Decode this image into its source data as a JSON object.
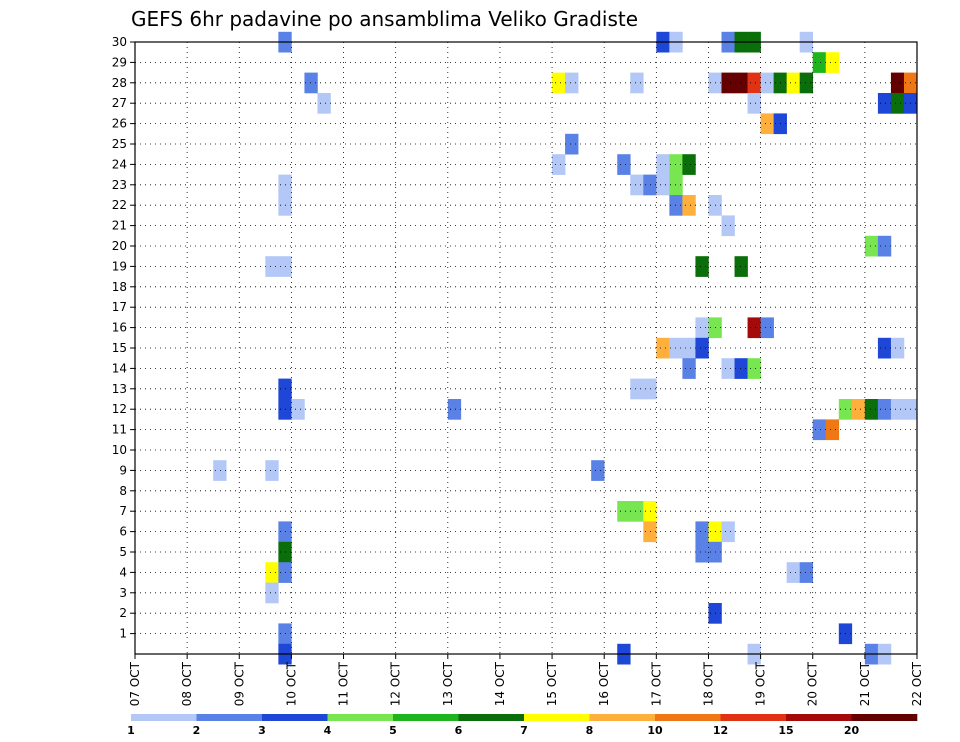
{
  "chart_data": {
    "type": "heatmap",
    "title": "GEFS 6hr padavine po ansamblima Veliko Gradiste",
    "xlabel": "",
    "ylabel": "",
    "x_ticks": [
      "07 OCT",
      "08 OCT",
      "09 OCT",
      "10 OCT",
      "11 OCT",
      "12 OCT",
      "13 OCT",
      "14 OCT",
      "15 OCT",
      "16 OCT",
      "17 OCT",
      "18 OCT",
      "19 OCT",
      "20 OCT",
      "21 OCT",
      "22 OCT"
    ],
    "y_ticks": [
      1,
      2,
      3,
      4,
      5,
      6,
      7,
      8,
      9,
      10,
      11,
      12,
      13,
      14,
      15,
      16,
      17,
      18,
      19,
      20,
      21,
      22,
      23,
      24,
      25,
      26,
      27,
      28,
      29,
      30
    ],
    "x_range_days": [
      0,
      15
    ],
    "y_range_members": [
      0,
      30
    ],
    "time_step_hours": 6,
    "grid": true,
    "colorbar": {
      "position": "bottom",
      "tick_labels": [
        "1",
        "2",
        "3",
        "4",
        "5",
        "6",
        "7",
        "8",
        "10",
        "12",
        "15",
        "20"
      ],
      "colors": [
        "#b4c8f8",
        "#5a82e6",
        "#1e46d7",
        "#78e650",
        "#1eb41e",
        "#0a6e0a",
        "#ffff00",
        "#ffaf3c",
        "#f07814",
        "#e13214",
        "#a50a0a",
        "#640000"
      ]
    },
    "palette_names": [
      "light-blue",
      "blue",
      "dark-blue",
      "light-green",
      "green",
      "dark-green",
      "yellow",
      "light-orange",
      "orange",
      "red",
      "dark-red",
      "maroon"
    ],
    "cells": [
      {
        "member": 30,
        "day": 2.75,
        "level": 1
      },
      {
        "member": 30,
        "day": 10.0,
        "level": 2
      },
      {
        "member": 30,
        "day": 10.25,
        "level": 0
      },
      {
        "member": 30,
        "day": 11.25,
        "level": 1
      },
      {
        "member": 30,
        "day": 11.5,
        "level": 5
      },
      {
        "member": 30,
        "day": 11.75,
        "level": 5
      },
      {
        "member": 30,
        "day": 12.75,
        "level": 0
      },
      {
        "member": 29,
        "day": 13.0,
        "level": 4
      },
      {
        "member": 29,
        "day": 13.25,
        "level": 6
      },
      {
        "member": 28,
        "day": 3.25,
        "level": 1
      },
      {
        "member": 28,
        "day": 8.0,
        "level": 6
      },
      {
        "member": 28,
        "day": 8.25,
        "level": 0
      },
      {
        "member": 28,
        "day": 9.5,
        "level": 0
      },
      {
        "member": 28,
        "day": 11.0,
        "level": 0
      },
      {
        "member": 28,
        "day": 11.25,
        "level": 11
      },
      {
        "member": 28,
        "day": 11.5,
        "level": 11
      },
      {
        "member": 28,
        "day": 11.75,
        "level": 9
      },
      {
        "member": 28,
        "day": 12.0,
        "level": 0
      },
      {
        "member": 28,
        "day": 12.25,
        "level": 5
      },
      {
        "member": 28,
        "day": 12.5,
        "level": 6
      },
      {
        "member": 28,
        "day": 12.75,
        "level": 5
      },
      {
        "member": 28,
        "day": 14.5,
        "level": 11
      },
      {
        "member": 28,
        "day": 14.75,
        "level": 8
      },
      {
        "member": 27,
        "day": 3.5,
        "level": 0
      },
      {
        "member": 27,
        "day": 11.75,
        "level": 0
      },
      {
        "member": 27,
        "day": 14.25,
        "level": 2
      },
      {
        "member": 27,
        "day": 14.5,
        "level": 5
      },
      {
        "member": 27,
        "day": 14.75,
        "level": 2
      },
      {
        "member": 26,
        "day": 12.0,
        "level": 7
      },
      {
        "member": 26,
        "day": 12.25,
        "level": 2
      },
      {
        "member": 25,
        "day": 8.25,
        "level": 1
      },
      {
        "member": 24,
        "day": 8.0,
        "level": 0
      },
      {
        "member": 24,
        "day": 9.25,
        "level": 1
      },
      {
        "member": 24,
        "day": 10.0,
        "level": 0
      },
      {
        "member": 24,
        "day": 10.25,
        "level": 3
      },
      {
        "member": 24,
        "day": 10.5,
        "level": 5
      },
      {
        "member": 23,
        "day": 2.75,
        "level": 0
      },
      {
        "member": 23,
        "day": 9.5,
        "level": 0
      },
      {
        "member": 23,
        "day": 9.75,
        "level": 1
      },
      {
        "member": 23,
        "day": 10.0,
        "level": 0
      },
      {
        "member": 23,
        "day": 10.25,
        "level": 3
      },
      {
        "member": 22,
        "day": 2.75,
        "level": 0
      },
      {
        "member": 22,
        "day": 10.25,
        "level": 1
      },
      {
        "member": 22,
        "day": 10.5,
        "level": 7
      },
      {
        "member": 22,
        "day": 11.0,
        "level": 0
      },
      {
        "member": 21,
        "day": 11.25,
        "level": 0
      },
      {
        "member": 20,
        "day": 14.0,
        "level": 3
      },
      {
        "member": 20,
        "day": 14.25,
        "level": 1
      },
      {
        "member": 19,
        "day": 2.5,
        "level": 0
      },
      {
        "member": 19,
        "day": 2.75,
        "level": 0
      },
      {
        "member": 19,
        "day": 10.75,
        "level": 5
      },
      {
        "member": 19,
        "day": 11.5,
        "level": 5
      },
      {
        "member": 16,
        "day": 10.75,
        "level": 0
      },
      {
        "member": 16,
        "day": 11.0,
        "level": 3
      },
      {
        "member": 16,
        "day": 11.75,
        "level": 10
      },
      {
        "member": 16,
        "day": 12.0,
        "level": 1
      },
      {
        "member": 15,
        "day": 10.0,
        "level": 7
      },
      {
        "member": 15,
        "day": 10.25,
        "level": 0
      },
      {
        "member": 15,
        "day": 10.5,
        "level": 0
      },
      {
        "member": 15,
        "day": 10.75,
        "level": 2
      },
      {
        "member": 15,
        "day": 14.25,
        "level": 2
      },
      {
        "member": 15,
        "day": 14.5,
        "level": 0
      },
      {
        "member": 14,
        "day": 10.5,
        "level": 1
      },
      {
        "member": 14,
        "day": 11.25,
        "level": 0
      },
      {
        "member": 14,
        "day": 11.5,
        "level": 2
      },
      {
        "member": 14,
        "day": 11.75,
        "level": 3
      },
      {
        "member": 13,
        "day": 2.75,
        "level": 2
      },
      {
        "member": 13,
        "day": 9.5,
        "level": 0
      },
      {
        "member": 13,
        "day": 9.75,
        "level": 0
      },
      {
        "member": 12,
        "day": 2.75,
        "level": 2
      },
      {
        "member": 12,
        "day": 3.0,
        "level": 0
      },
      {
        "member": 12,
        "day": 6.0,
        "level": 1
      },
      {
        "member": 12,
        "day": 13.5,
        "level": 3
      },
      {
        "member": 12,
        "day": 13.75,
        "level": 7
      },
      {
        "member": 12,
        "day": 14.0,
        "level": 5
      },
      {
        "member": 12,
        "day": 14.25,
        "level": 1
      },
      {
        "member": 12,
        "day": 14.5,
        "level": 0
      },
      {
        "member": 12,
        "day": 14.75,
        "level": 0
      },
      {
        "member": 11,
        "day": 13.0,
        "level": 1
      },
      {
        "member": 11,
        "day": 13.25,
        "level": 8
      },
      {
        "member": 9,
        "day": 1.5,
        "level": 0
      },
      {
        "member": 9,
        "day": 2.5,
        "level": 0
      },
      {
        "member": 9,
        "day": 8.75,
        "level": 1
      },
      {
        "member": 7,
        "day": 9.25,
        "level": 3
      },
      {
        "member": 7,
        "day": 9.5,
        "level": 3
      },
      {
        "member": 7,
        "day": 9.75,
        "level": 6
      },
      {
        "member": 6,
        "day": 2.75,
        "level": 1
      },
      {
        "member": 6,
        "day": 9.75,
        "level": 7
      },
      {
        "member": 6,
        "day": 10.75,
        "level": 1
      },
      {
        "member": 6,
        "day": 11.0,
        "level": 6
      },
      {
        "member": 6,
        "day": 11.25,
        "level": 0
      },
      {
        "member": 5,
        "day": 2.75,
        "level": 5
      },
      {
        "member": 5,
        "day": 10.75,
        "level": 1
      },
      {
        "member": 5,
        "day": 11.0,
        "level": 1
      },
      {
        "member": 4,
        "day": 2.5,
        "level": 6
      },
      {
        "member": 4,
        "day": 2.75,
        "level": 1
      },
      {
        "member": 4,
        "day": 12.5,
        "level": 0
      },
      {
        "member": 4,
        "day": 12.75,
        "level": 1
      },
      {
        "member": 3,
        "day": 2.5,
        "level": 0
      },
      {
        "member": 2,
        "day": 11.0,
        "level": 2
      },
      {
        "member": 1,
        "day": 2.75,
        "level": 1
      },
      {
        "member": 1,
        "day": 13.5,
        "level": 2
      },
      {
        "member": 0,
        "day": 2.75,
        "level": 2
      },
      {
        "member": 0,
        "day": 9.25,
        "level": 2
      },
      {
        "member": 0,
        "day": 11.75,
        "level": 0
      },
      {
        "member": 0,
        "day": 14.0,
        "level": 1
      },
      {
        "member": 0,
        "day": 14.25,
        "level": 0
      }
    ]
  }
}
